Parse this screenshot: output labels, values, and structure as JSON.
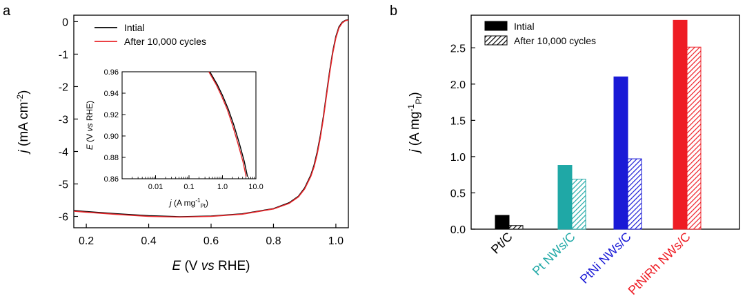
{
  "panels": {
    "a": "a",
    "b": "b"
  },
  "chart_data": [
    {
      "type": "line",
      "xlabel_parts": [
        "E",
        " (V ",
        "vs",
        " RHE)"
      ],
      "ylabel_parts": [
        "j",
        " (mA cm",
        "-2",
        ")"
      ],
      "xlim": [
        0.16,
        1.04
      ],
      "ylim": [
        -6.35,
        0.2
      ],
      "xticks": [
        0.2,
        0.4,
        0.6,
        0.8,
        1.0
      ],
      "xtick_labels": [
        "0.2",
        "0.4",
        "0.6",
        "0.8",
        "1.0"
      ],
      "yticks": [
        0,
        -1,
        -2,
        -3,
        -4,
        -5,
        -6
      ],
      "ytick_labels": [
        "0",
        "-1",
        "-2",
        "-3",
        "-4",
        "-5",
        "-6"
      ],
      "legend": {
        "position": "top-left"
      },
      "series": [
        {
          "name": "Intial",
          "color": "#000000",
          "x": [
            0.16,
            0.2,
            0.3,
            0.4,
            0.5,
            0.6,
            0.7,
            0.8,
            0.85,
            0.88,
            0.9,
            0.92,
            0.93,
            0.94,
            0.95,
            0.96,
            0.97,
            0.98,
            0.99,
            1.0,
            1.01,
            1.02,
            1.03,
            1.04
          ],
          "y": [
            -5.82,
            -5.85,
            -5.92,
            -5.98,
            -6.01,
            -5.99,
            -5.92,
            -5.76,
            -5.58,
            -5.38,
            -5.12,
            -4.72,
            -4.42,
            -4.02,
            -3.52,
            -2.92,
            -2.22,
            -1.52,
            -0.92,
            -0.46,
            -0.16,
            -0.02,
            0.04,
            0.06
          ]
        },
        {
          "name": "After 10,000 cycles",
          "color": "#e8262a",
          "x": [
            0.16,
            0.2,
            0.3,
            0.4,
            0.5,
            0.6,
            0.7,
            0.8,
            0.85,
            0.88,
            0.9,
            0.92,
            0.93,
            0.94,
            0.95,
            0.96,
            0.97,
            0.98,
            0.99,
            1.0,
            1.01,
            1.02,
            1.03,
            1.04
          ],
          "y": [
            -5.84,
            -5.87,
            -5.94,
            -6.0,
            -6.02,
            -6.0,
            -5.93,
            -5.77,
            -5.6,
            -5.4,
            -5.15,
            -4.76,
            -4.47,
            -4.08,
            -3.58,
            -2.98,
            -2.28,
            -1.58,
            -0.97,
            -0.5,
            -0.19,
            -0.04,
            0.03,
            0.05
          ]
        }
      ],
      "inset": {
        "type": "line",
        "xscale": "log",
        "xlim": [
          0.001,
          10
        ],
        "ylim": [
          0.86,
          0.96
        ],
        "xticks": [
          0.01,
          0.1,
          1,
          10
        ],
        "xtick_labels": [
          "0.01",
          "0.1",
          "1.0",
          "10.0"
        ],
        "yticks": [
          0.86,
          0.88,
          0.9,
          0.92,
          0.94,
          0.96
        ],
        "ytick_labels": [
          "0.86",
          "0.88",
          "0.90",
          "0.92",
          "0.94",
          "0.96"
        ],
        "xlabel_parts": [
          "j",
          " (A mg",
          "-1",
          "Pt",
          ")"
        ],
        "ylabel_parts": [
          "E",
          " (V ",
          "vs",
          " RHE)"
        ],
        "series": [
          {
            "name": "Intial",
            "color": "#000000",
            "x": [
              0.42,
              0.7,
              1.0,
              1.5,
              2.2,
              3.2,
              4.5,
              5.6
            ],
            "y": [
              0.96,
              0.948,
              0.938,
              0.925,
              0.91,
              0.893,
              0.876,
              0.862
            ]
          },
          {
            "name": "After 10,000 cycles",
            "color": "#e8262a",
            "x": [
              0.39,
              0.65,
              0.92,
              1.38,
              2.0,
              2.9,
              4.1,
              5.1
            ],
            "y": [
              0.96,
              0.948,
              0.938,
              0.925,
              0.91,
              0.893,
              0.876,
              0.862
            ]
          }
        ]
      }
    },
    {
      "type": "bar",
      "ylabel_parts": [
        "j",
        " (A mg",
        "-1",
        "Pt",
        ")"
      ],
      "ylim": [
        0,
        2.95
      ],
      "yticks": [
        0,
        0.5,
        1.0,
        1.5,
        2.0,
        2.5
      ],
      "ytick_labels": [
        "0.0",
        "0.5",
        "1.0",
        "1.5",
        "2.0",
        "2.5"
      ],
      "legend": {
        "position": "top-left"
      },
      "categories": [
        "Pt/C",
        "Pt NWs/C",
        "PtNi NWs/C",
        "PtNiRh NWs/C"
      ],
      "category_colors": [
        "#000000",
        "#1fa8a6",
        "#1a1ad6",
        "#ee1c24"
      ],
      "series": [
        {
          "name": "Intial",
          "pattern": "solid",
          "values": [
            0.19,
            0.88,
            2.1,
            2.88
          ]
        },
        {
          "name": "After 10,000 cycles",
          "pattern": "hatched",
          "values": [
            0.05,
            0.69,
            0.97,
            2.51
          ]
        }
      ]
    }
  ]
}
